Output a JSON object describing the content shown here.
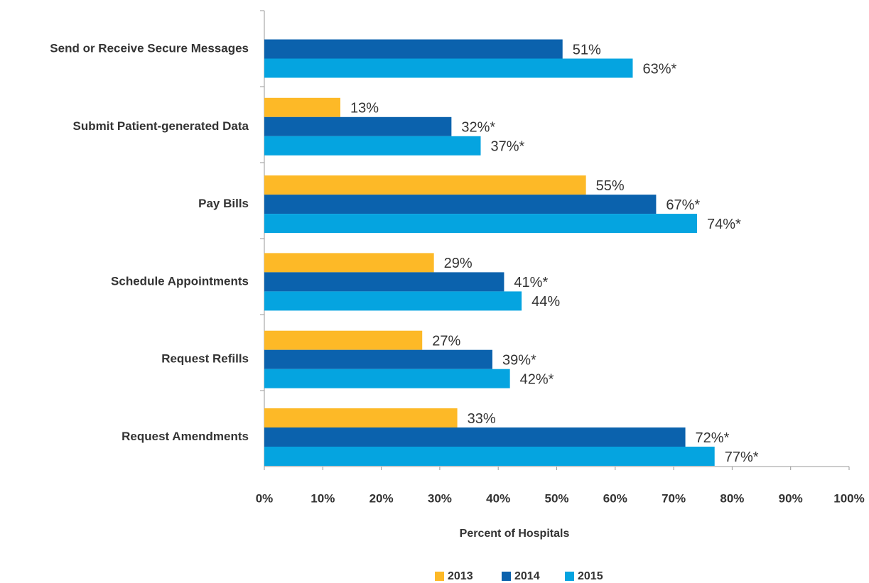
{
  "chart_data": {
    "type": "hbar",
    "xlabel": "Percent of Hospitals",
    "categories": [
      "Send or Receive Secure Messages",
      "Submit Patient-generated Data",
      "Pay Bills",
      "Schedule Appointments",
      "Request Refills",
      "Request Amendments"
    ],
    "series": [
      {
        "name": "2013",
        "color": "#fdb927",
        "values": [
          null,
          13,
          55,
          29,
          27,
          33
        ],
        "value_labels": [
          null,
          "13%",
          "55%",
          "29%",
          "27%",
          "33%"
        ]
      },
      {
        "name": "2014",
        "color": "#0b62ad",
        "values": [
          51,
          32,
          67,
          41,
          39,
          72
        ],
        "value_labels": [
          "51%",
          "32%*",
          "67%*",
          "41%*",
          "39%*",
          "72%*"
        ]
      },
      {
        "name": "2015",
        "color": "#05a4e0",
        "values": [
          63,
          37,
          74,
          44,
          42,
          77
        ],
        "value_labels": [
          "63%*",
          "37%*",
          "74%*",
          "44%",
          "42%*",
          "77%*"
        ]
      }
    ],
    "xlim": [
      0,
      100
    ],
    "xticks": [
      {
        "value": 0,
        "label": "0%"
      },
      {
        "value": 10,
        "label": "10%"
      },
      {
        "value": 20,
        "label": "20%"
      },
      {
        "value": 30,
        "label": "30%"
      },
      {
        "value": 40,
        "label": "40%"
      },
      {
        "value": 50,
        "label": "50%"
      },
      {
        "value": 60,
        "label": "60%"
      },
      {
        "value": 70,
        "label": "70%"
      },
      {
        "value": 80,
        "label": "80%"
      },
      {
        "value": 90,
        "label": "90%"
      },
      {
        "value": 100,
        "label": "100%"
      }
    ],
    "legend": "bottom"
  }
}
